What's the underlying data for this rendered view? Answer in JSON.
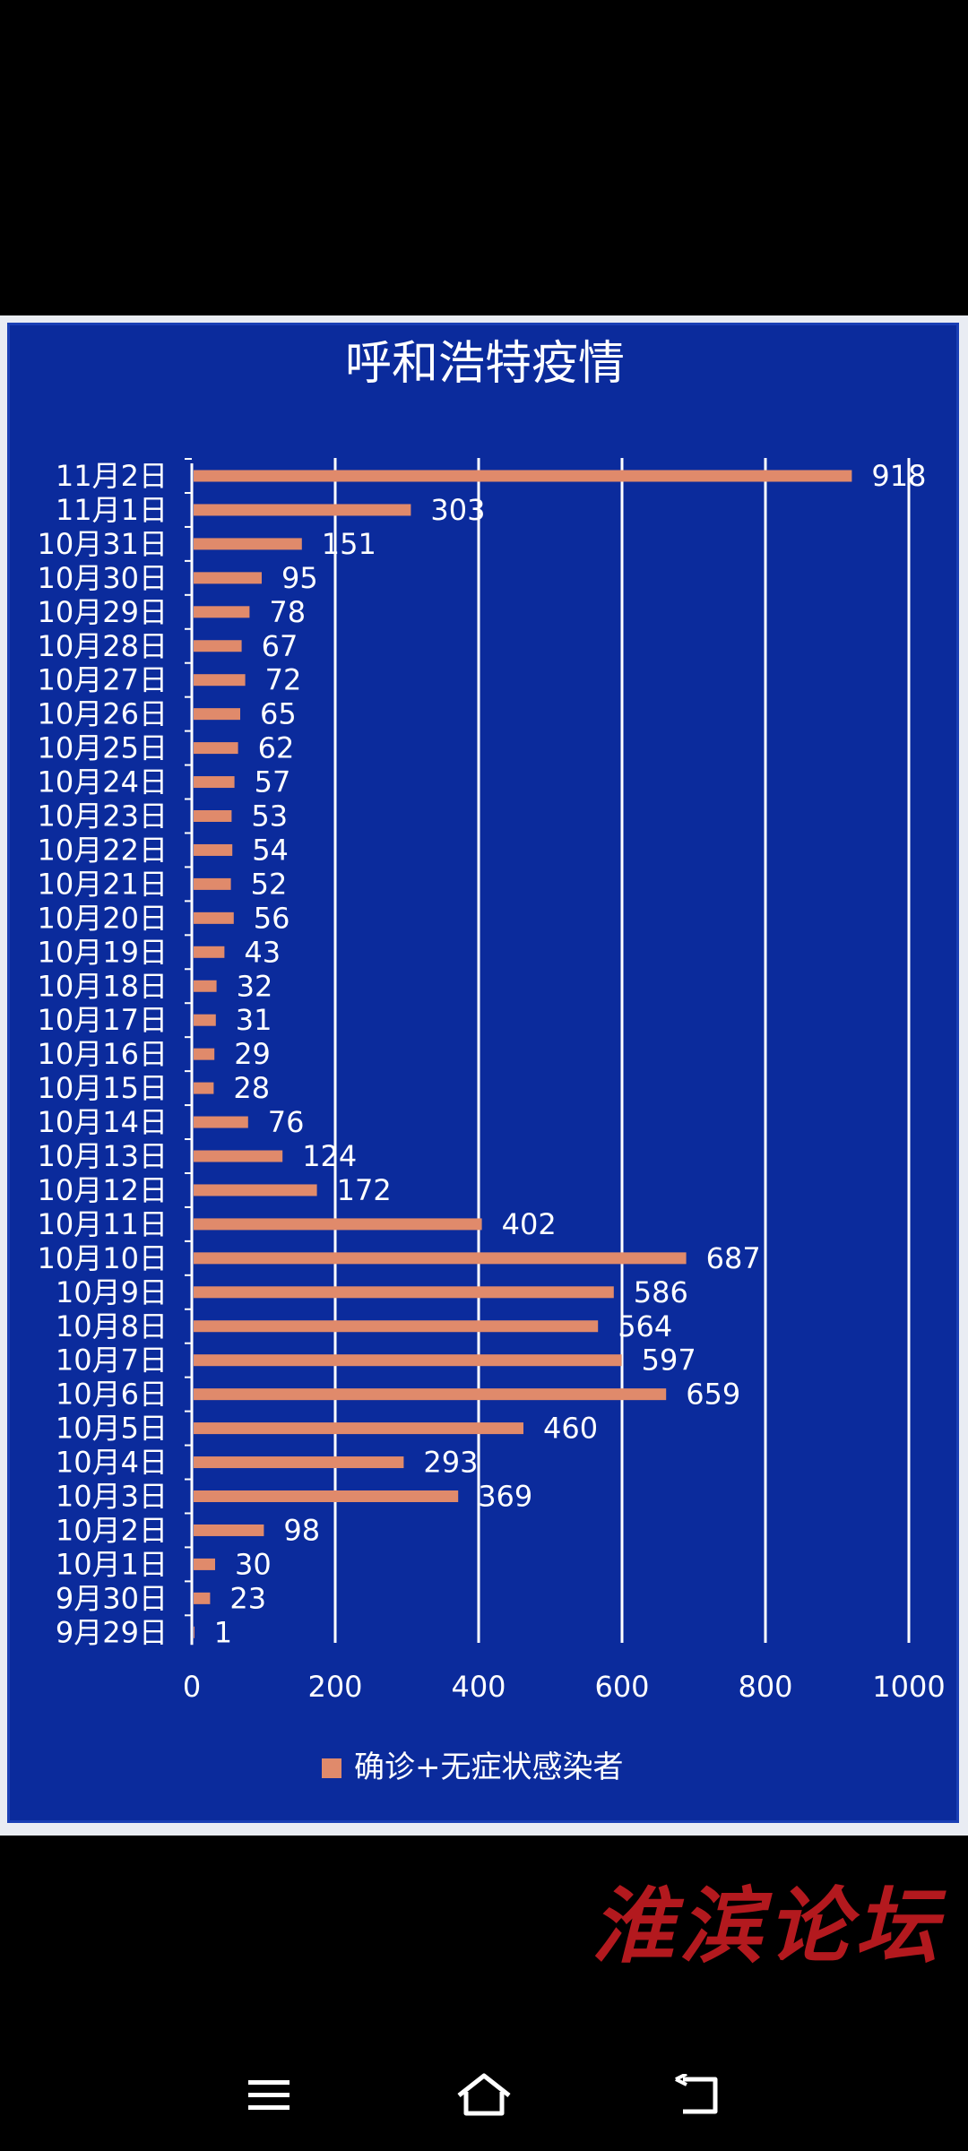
{
  "chart_data": {
    "type": "bar",
    "orientation": "horizontal",
    "title": "呼和浩特疫情",
    "categories": [
      "11月2日",
      "11月1日",
      "10月31日",
      "10月30日",
      "10月29日",
      "10月28日",
      "10月27日",
      "10月26日",
      "10月25日",
      "10月24日",
      "10月23日",
      "10月22日",
      "10月21日",
      "10月20日",
      "10月19日",
      "10月18日",
      "10月17日",
      "10月16日",
      "10月15日",
      "10月14日",
      "10月13日",
      "10月12日",
      "10月11日",
      "10月10日",
      "10月9日",
      "10月8日",
      "10月7日",
      "10月6日",
      "10月5日",
      "10月4日",
      "10月3日",
      "10月2日",
      "10月1日",
      "9月30日",
      "9月29日"
    ],
    "series": [
      {
        "name": "确诊+无症状感染者",
        "values": [
          918,
          303,
          151,
          95,
          78,
          67,
          72,
          65,
          62,
          57,
          53,
          54,
          52,
          56,
          43,
          32,
          31,
          29,
          28,
          76,
          124,
          172,
          402,
          687,
          586,
          564,
          597,
          659,
          460,
          293,
          369,
          98,
          30,
          23,
          1
        ]
      }
    ],
    "xlim": [
      0,
      1000
    ],
    "x_ticks": [
      "0",
      "200",
      "400",
      "600",
      "800",
      "1000"
    ],
    "grid": true,
    "legend_position": "bottom",
    "colors": {
      "bar": "#e08a6b",
      "background": "#0b2b9c",
      "text": "#ffffff",
      "grid": "#ffffff"
    }
  },
  "watermark": "淮滨论坛",
  "nav": {
    "menu_icon": "menu-icon",
    "home_icon": "home-icon",
    "back_icon": "back-icon"
  }
}
